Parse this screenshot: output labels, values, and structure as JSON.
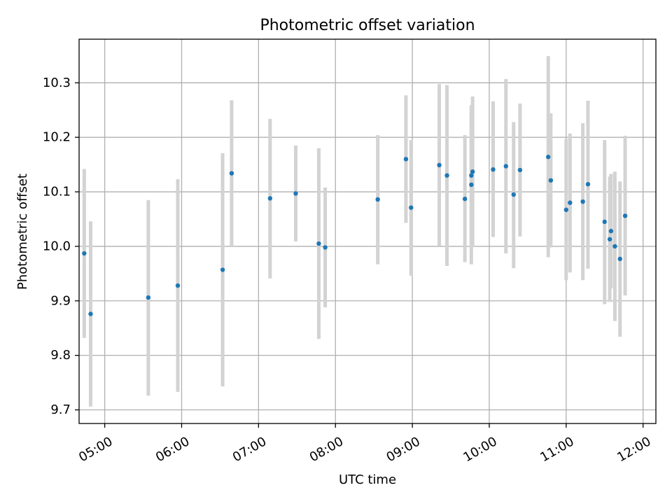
{
  "chart_data": {
    "type": "scatter",
    "title": "Photometric offset variation",
    "xlabel": "UTC time",
    "ylabel": "Photometric offset",
    "xlim": [
      "04:40",
      "12:10"
    ],
    "ylim": [
      9.675,
      10.38
    ],
    "x_ticks": [
      "05:00",
      "06:00",
      "07:00",
      "08:00",
      "09:00",
      "10:00",
      "11:00",
      "12:00"
    ],
    "y_ticks": [
      9.7,
      9.8,
      9.9,
      10.0,
      10.1,
      10.2,
      10.3
    ],
    "y_tick_labels": [
      "9.7",
      "9.8",
      "9.9",
      "10.0",
      "10.1",
      "10.2",
      "10.3"
    ],
    "grid": true,
    "colors": {
      "point": "#1f77b4",
      "errorbar": "#d3d3d3",
      "grid": "#b0b0b0"
    },
    "points": [
      {
        "x": "04:44",
        "y": 9.987,
        "ylow": 9.832,
        "yhigh": 10.142
      },
      {
        "x": "04:49",
        "y": 9.876,
        "ylow": 9.706,
        "yhigh": 10.046
      },
      {
        "x": "05:34",
        "y": 9.906,
        "ylow": 9.726,
        "yhigh": 10.085
      },
      {
        "x": "05:57",
        "y": 9.928,
        "ylow": 9.733,
        "yhigh": 10.123
      },
      {
        "x": "06:32",
        "y": 9.957,
        "ylow": 9.743,
        "yhigh": 10.171
      },
      {
        "x": "06:39",
        "y": 10.134,
        "ylow": 10.0,
        "yhigh": 10.268
      },
      {
        "x": "07:09",
        "y": 10.088,
        "ylow": 9.941,
        "yhigh": 10.234
      },
      {
        "x": "07:29",
        "y": 10.097,
        "ylow": 10.009,
        "yhigh": 10.185
      },
      {
        "x": "07:47",
        "y": 10.005,
        "ylow": 9.83,
        "yhigh": 10.18
      },
      {
        "x": "07:52",
        "y": 9.998,
        "ylow": 9.888,
        "yhigh": 10.108
      },
      {
        "x": "08:33",
        "y": 10.086,
        "ylow": 9.967,
        "yhigh": 10.204
      },
      {
        "x": "08:55",
        "y": 10.16,
        "ylow": 10.043,
        "yhigh": 10.277
      },
      {
        "x": "08:59",
        "y": 10.071,
        "ylow": 9.946,
        "yhigh": 10.195
      },
      {
        "x": "09:21",
        "y": 10.149,
        "ylow": 10.001,
        "yhigh": 10.298
      },
      {
        "x": "09:27",
        "y": 10.13,
        "ylow": 9.964,
        "yhigh": 10.296
      },
      {
        "x": "09:41",
        "y": 10.087,
        "ylow": 9.971,
        "yhigh": 10.204
      },
      {
        "x": "09:46",
        "y": 10.113,
        "ylow": 9.967,
        "yhigh": 10.259
      },
      {
        "x": "09:46",
        "y": 10.13,
        "ylow": 10.006,
        "yhigh": 10.254
      },
      {
        "x": "09:47",
        "y": 10.137,
        "ylow": 10.0,
        "yhigh": 10.275
      },
      {
        "x": "10:03",
        "y": 10.141,
        "ylow": 10.017,
        "yhigh": 10.266
      },
      {
        "x": "10:13",
        "y": 10.147,
        "ylow": 9.987,
        "yhigh": 10.307
      },
      {
        "x": "10:19",
        "y": 10.095,
        "ylow": 9.96,
        "yhigh": 10.228
      },
      {
        "x": "10:24",
        "y": 10.14,
        "ylow": 10.018,
        "yhigh": 10.262
      },
      {
        "x": "10:46",
        "y": 10.164,
        "ylow": 9.98,
        "yhigh": 10.349
      },
      {
        "x": "10:48",
        "y": 10.121,
        "ylow": 9.998,
        "yhigh": 10.244
      },
      {
        "x": "11:00",
        "y": 10.067,
        "ylow": 9.938,
        "yhigh": 10.197
      },
      {
        "x": "11:03",
        "y": 10.08,
        "ylow": 9.952,
        "yhigh": 10.207
      },
      {
        "x": "11:13",
        "y": 10.082,
        "ylow": 9.938,
        "yhigh": 10.226
      },
      {
        "x": "11:17",
        "y": 10.114,
        "ylow": 9.959,
        "yhigh": 10.267
      },
      {
        "x": "11:30",
        "y": 10.045,
        "ylow": 9.894,
        "yhigh": 10.195
      },
      {
        "x": "11:34",
        "y": 10.013,
        "ylow": 9.898,
        "yhigh": 10.128
      },
      {
        "x": "11:35",
        "y": 10.028,
        "ylow": 9.923,
        "yhigh": 10.133
      },
      {
        "x": "11:38",
        "y": 10.0,
        "ylow": 9.863,
        "yhigh": 10.137
      },
      {
        "x": "11:42",
        "y": 9.977,
        "ylow": 9.834,
        "yhigh": 10.119
      },
      {
        "x": "11:46",
        "y": 10.056,
        "ylow": 9.91,
        "yhigh": 10.203
      }
    ]
  }
}
